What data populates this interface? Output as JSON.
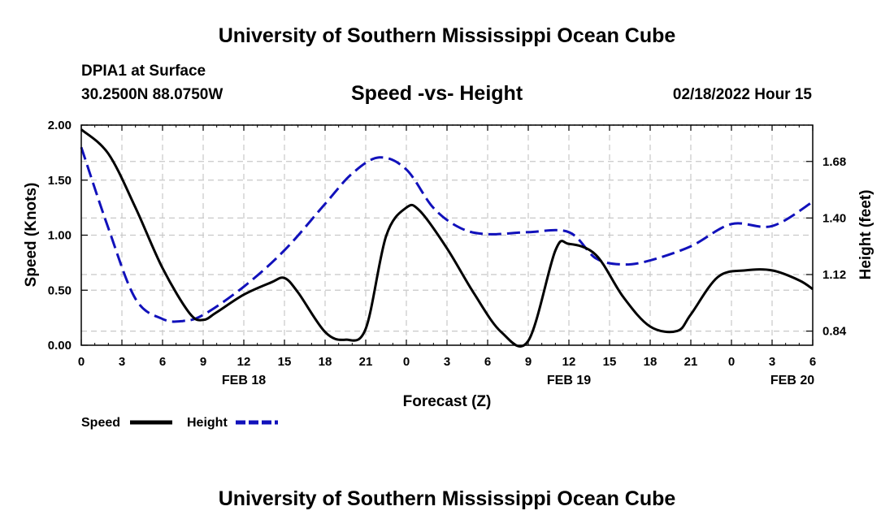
{
  "header": {
    "title": "University of Southern Mississippi Ocean Cube",
    "station": "DPIA1 at Surface",
    "coords": "30.2500N  88.0750W",
    "datetime": "02/18/2022 Hour 15"
  },
  "footer": {
    "title": "University of Southern Mississippi Ocean Cube"
  },
  "chart_data": {
    "type": "line",
    "title": "Speed -vs- Height",
    "xlabel": "Forecast (Z)",
    "ylabel_left": "Speed (Knots)",
    "ylabel_right": "Height (feet)",
    "x_range": [
      0,
      54
    ],
    "x_tick_values": [
      0,
      3,
      6,
      9,
      12,
      15,
      18,
      21,
      24,
      27,
      30,
      33,
      36,
      39,
      42,
      45,
      48,
      51,
      54
    ],
    "x_tick_labels": [
      "0",
      "3",
      "6",
      "9",
      "12",
      "15",
      "18",
      "21",
      "0",
      "3",
      "6",
      "9",
      "12",
      "15",
      "18",
      "21",
      "0",
      "3",
      "6"
    ],
    "date_labels": [
      {
        "x": 12,
        "label": "FEB 18"
      },
      {
        "x": 36,
        "label": "FEB 19"
      },
      {
        "x": 52.5,
        "label": "FEB 20"
      }
    ],
    "y_left": {
      "range": [
        0,
        2
      ],
      "tick_values": [
        0,
        0.5,
        1,
        1.5,
        2
      ],
      "tick_labels": [
        "0.00",
        "0.50",
        "1.00",
        "1.50",
        "2.00"
      ],
      "grid": [
        0,
        0.5,
        1,
        1.5,
        2
      ]
    },
    "y_right": {
      "range": [
        0.77,
        1.86
      ],
      "tick_values": [
        0.84,
        1.12,
        1.4,
        1.68
      ],
      "tick_labels": [
        "0.84",
        "1.12",
        "1.40",
        "1.68"
      ]
    },
    "grid": true,
    "legend_position": "bottom-left",
    "series": [
      {
        "name": "Speed",
        "axis": "left",
        "color": "#000000",
        "dash": "solid",
        "x": [
          0,
          2,
          4,
          6,
          8,
          9,
          10,
          12,
          14,
          15,
          16,
          18,
          19.5,
          21,
          22.5,
          24,
          25,
          27,
          29,
          31,
          33,
          35,
          36,
          38,
          40,
          42,
          44,
          45,
          47,
          49,
          51,
          53,
          54
        ],
        "y": [
          1.96,
          1.74,
          1.25,
          0.7,
          0.29,
          0.23,
          0.3,
          0.46,
          0.57,
          0.61,
          0.48,
          0.12,
          0.05,
          0.15,
          0.99,
          1.25,
          1.22,
          0.88,
          0.47,
          0.12,
          0.04,
          0.86,
          0.92,
          0.82,
          0.44,
          0.17,
          0.13,
          0.28,
          0.62,
          0.68,
          0.68,
          0.59,
          0.51
        ]
      },
      {
        "name": "Height",
        "axis": "right",
        "color": "#1111bb",
        "dash": "dashed",
        "x": [
          0,
          2,
          4,
          6,
          7.5,
          9,
          12,
          15,
          18,
          20,
          22,
          24,
          26,
          28,
          30,
          33,
          36,
          38,
          40,
          42,
          45,
          48,
          51,
          54
        ],
        "y": [
          1.75,
          1.35,
          1.0,
          0.9,
          0.89,
          0.92,
          1.06,
          1.24,
          1.47,
          1.62,
          1.7,
          1.64,
          1.45,
          1.35,
          1.32,
          1.33,
          1.33,
          1.2,
          1.17,
          1.19,
          1.26,
          1.37,
          1.36,
          1.48
        ]
      }
    ]
  }
}
